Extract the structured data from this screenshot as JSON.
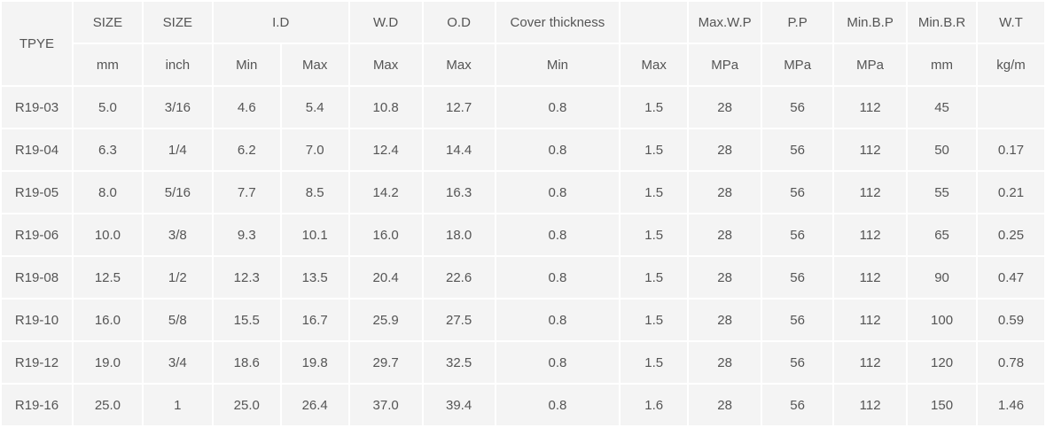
{
  "header": {
    "type_label": "TPYE",
    "size_mm_label": "SIZE",
    "size_inch_label": "SIZE",
    "id_label": "I.D",
    "wd_label": "W.D",
    "od_label": "O.D",
    "cover_label": "Cover thickness",
    "cover_blank": "",
    "maxwp_label": "Max.W.P",
    "pp_label": "P.P",
    "minbp_label": "Min.B.P",
    "minbr_label": "Min.B.R",
    "wt_label": "W.T"
  },
  "subheader": [
    "mm",
    "inch",
    "Min",
    "Max",
    "Max",
    "Max",
    "Min",
    "Max",
    "MPa",
    "MPa",
    "MPa",
    "mm",
    "kg/m"
  ],
  "rows": [
    [
      "R19-03",
      "5.0",
      "3/16",
      "4.6",
      "5.4",
      "10.8",
      "12.7",
      "0.8",
      "1.5",
      "28",
      "56",
      "112",
      "45",
      ""
    ],
    [
      "R19-04",
      "6.3",
      "1/4",
      "6.2",
      "7.0",
      "12.4",
      "14.4",
      "0.8",
      "1.5",
      "28",
      "56",
      "112",
      "50",
      "0.17"
    ],
    [
      "R19-05",
      "8.0",
      "5/16",
      "7.7",
      "8.5",
      "14.2",
      "16.3",
      "0.8",
      "1.5",
      "28",
      "56",
      "112",
      "55",
      "0.21"
    ],
    [
      "R19-06",
      "10.0",
      "3/8",
      "9.3",
      "10.1",
      "16.0",
      "18.0",
      "0.8",
      "1.5",
      "28",
      "56",
      "112",
      "65",
      "0.25"
    ],
    [
      "R19-08",
      "12.5",
      "1/2",
      "12.3",
      "13.5",
      "20.4",
      "22.6",
      "0.8",
      "1.5",
      "28",
      "56",
      "112",
      "90",
      "0.47"
    ],
    [
      "R19-10",
      "16.0",
      "5/8",
      "15.5",
      "16.7",
      "25.9",
      "27.5",
      "0.8",
      "1.5",
      "28",
      "56",
      "112",
      "100",
      "0.59"
    ],
    [
      "R19-12",
      "19.0",
      "3/4",
      "18.6",
      "19.8",
      "29.7",
      "32.5",
      "0.8",
      "1.5",
      "28",
      "56",
      "112",
      "120",
      "0.78"
    ],
    [
      "R19-16",
      "25.0",
      "1",
      "25.0",
      "26.4",
      "37.0",
      "39.4",
      "0.8",
      "1.6",
      "28",
      "56",
      "112",
      "150",
      "1.46"
    ]
  ]
}
